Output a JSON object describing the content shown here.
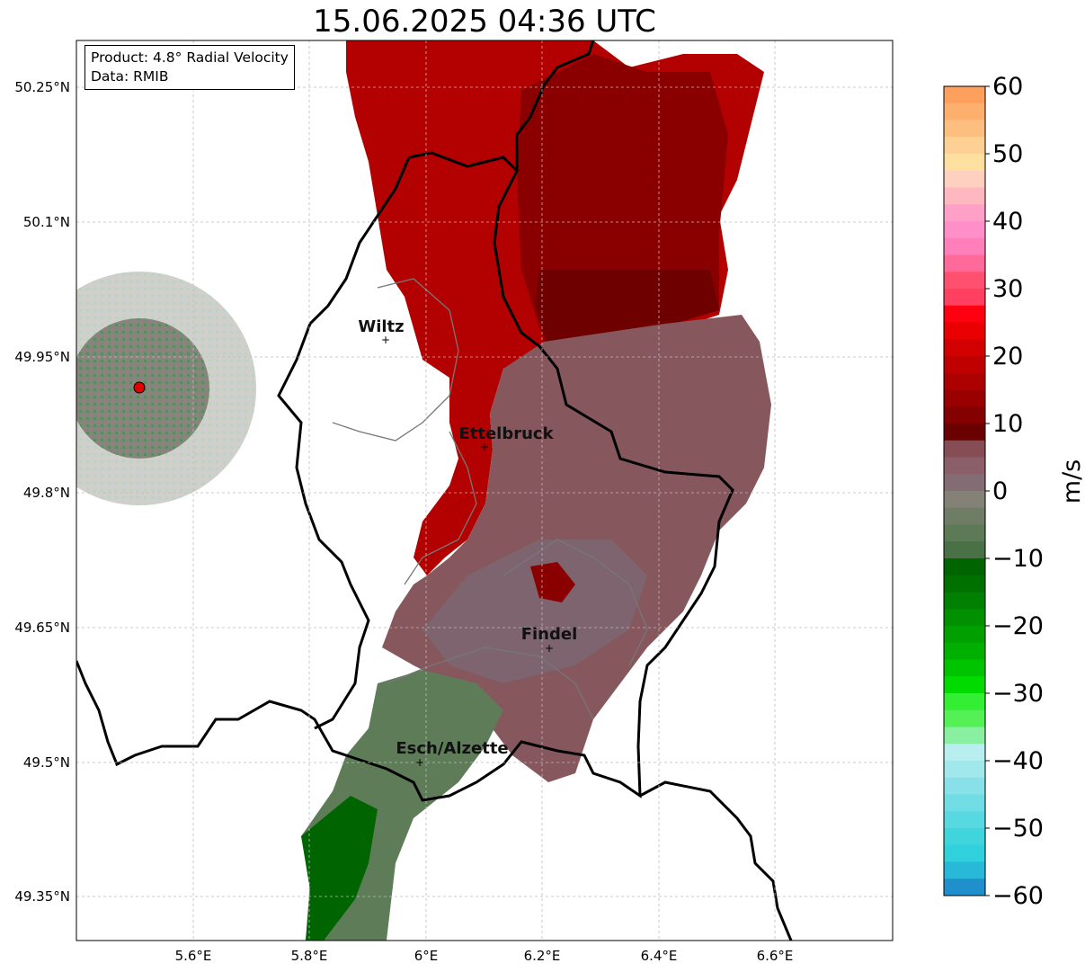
{
  "title": "15.06.2025 04:36 UTC",
  "infobox": {
    "product": "Product: 4.8° Radial Velocity",
    "source": "Data: RMIB"
  },
  "map": {
    "x_ticks": [
      "5.6°E",
      "5.8°E",
      "6°E",
      "6.2°E",
      "6.4°E",
      "6.6°E"
    ],
    "y_ticks": [
      "50.25°N",
      "50.1°N",
      "49.95°N",
      "49.8°N",
      "49.65°N",
      "49.5°N",
      "49.35°N"
    ],
    "grid": true,
    "cities": [
      {
        "name": "Wiltz",
        "lon": 5.93,
        "lat": 49.967
      },
      {
        "name": "Ettelbruck",
        "lon": 6.1,
        "lat": 49.847
      },
      {
        "name": "Findel",
        "lon": 6.21,
        "lat": 49.628
      },
      {
        "name": "Esch/Alzette",
        "lon": 5.99,
        "lat": 49.5
      }
    ],
    "radar_site": {
      "lon": 5.505,
      "lat": 49.915,
      "color": "#e00000"
    }
  },
  "colorbar": {
    "unit": "m/s",
    "ticks": [
      "60",
      "50",
      "40",
      "30",
      "20",
      "10",
      "0",
      "−10",
      "−20",
      "−30",
      "−40",
      "−50",
      "−60"
    ],
    "range": [
      -60,
      60
    ]
  }
}
